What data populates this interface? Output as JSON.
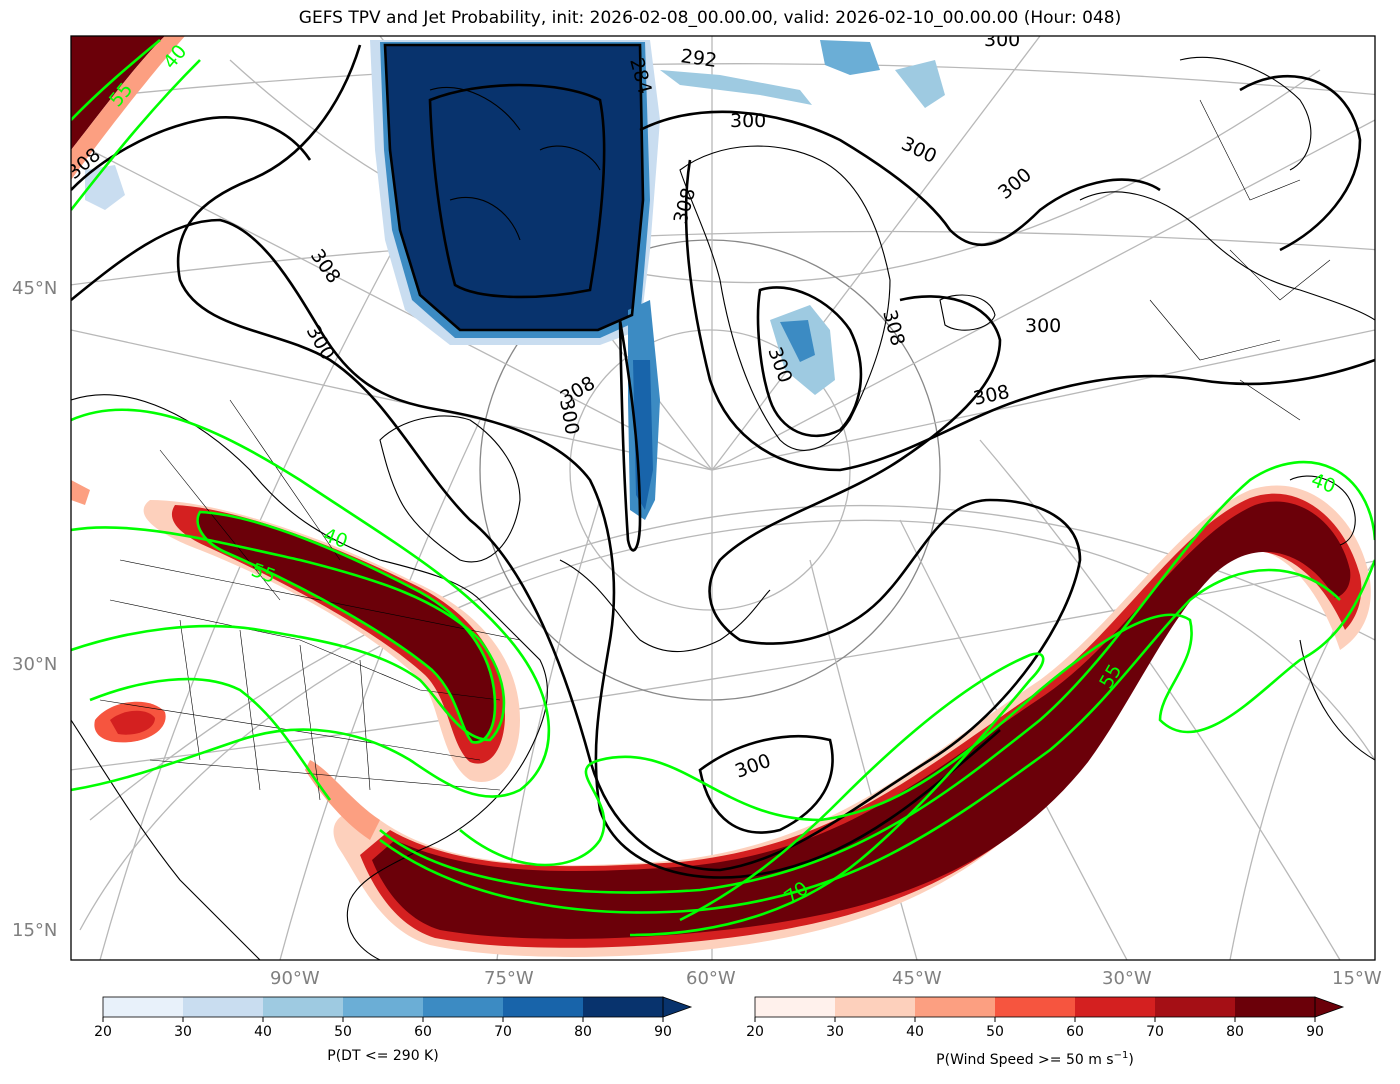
{
  "title": "GEFS TPV and Jet Probability, init: 2026-02-08_00.00.00, valid: 2026-02-10_00.00.00 (Hour: 048)",
  "lat_labels": [
    "45°N",
    "30°N",
    "15°N"
  ],
  "lon_labels": [
    "90°W",
    "75°W",
    "60°W",
    "45°W",
    "30°W",
    "15°W"
  ],
  "contour_labels": {
    "theta": [
      "292",
      "300",
      "300",
      "300",
      "300",
      "300",
      "300",
      "300",
      "300",
      "300",
      "308",
      "308",
      "308",
      "308",
      "308",
      "308",
      "284"
    ],
    "wind": [
      "40",
      "40",
      "40",
      "55",
      "55",
      "55",
      "70"
    ]
  },
  "colorbars": {
    "tpv": {
      "label": "P(DT <= 290 K)",
      "ticks": [
        "20",
        "30",
        "40",
        "50",
        "60",
        "70",
        "80",
        "90"
      ],
      "colors": [
        "#e8f1fa",
        "#c9ddf0",
        "#9ecae1",
        "#6baed6",
        "#3c8bc3",
        "#1864aa",
        "#08336d"
      ]
    },
    "jet": {
      "label": "P(Wind Speed >= 50 m s",
      "label_sup": "−1",
      "label_end": ")",
      "ticks": [
        "20",
        "30",
        "40",
        "50",
        "60",
        "70",
        "80",
        "90"
      ],
      "colors": [
        "#fff1ec",
        "#fdd0bc",
        "#fc9f81",
        "#f6553f",
        "#d42020",
        "#a50f15",
        "#6b0009"
      ]
    }
  },
  "colors": {
    "tpv_core": "#08336d",
    "jet_core": "#6b0009",
    "wind_contour": "#00ff00",
    "theta_contour": "#000000",
    "graticule": "#b8b8b8",
    "axis_label": "#808080"
  }
}
